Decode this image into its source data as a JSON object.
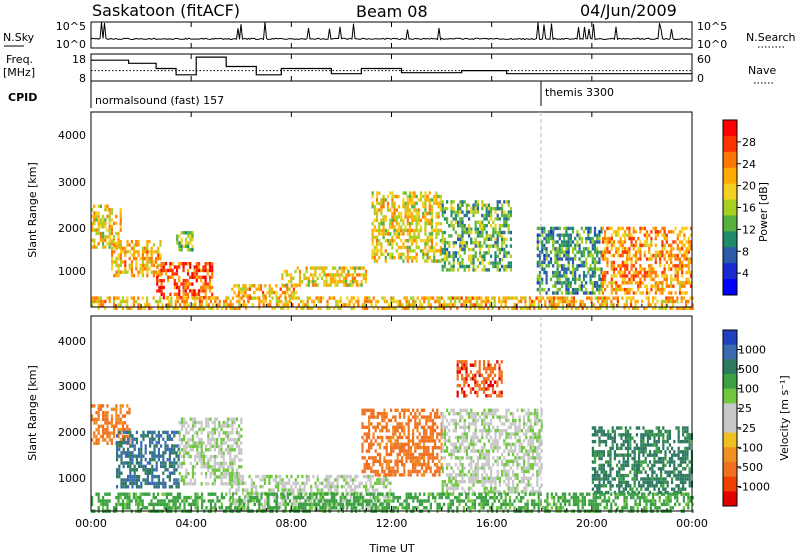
{
  "header": {
    "left": "Saskatoon (fitACF)",
    "center": "Beam 08",
    "right": "04/Jun/2009"
  },
  "noise_panel": {
    "left_label": "N.Sky",
    "right_label": "N.Search",
    "y_ticks": [
      "10^5",
      "10^0"
    ],
    "right_ticks": [
      "10^5",
      "10^0"
    ]
  },
  "freq_panel": {
    "left_label_1": "Freq.",
    "left_label_2": "[MHz]",
    "right_label": "Nave",
    "y_ticks": [
      "18",
      "8"
    ],
    "right_ticks": [
      "60",
      "0"
    ]
  },
  "cpid_panel": {
    "label": "CPID",
    "modes": [
      {
        "name": "normalsound (fast) 157",
        "start_hour": 0
      },
      {
        "name": "themis 3300",
        "start_hour": 18
      }
    ]
  },
  "power_panel": {
    "ylabel": "Slant Range [km]",
    "y_ticks": [
      "4000",
      "3000",
      "2000",
      "1000"
    ],
    "colorbar_label": "Power [dB]",
    "colorbar_ticks": [
      "28",
      "24",
      "20",
      "16",
      "12",
      "8",
      "4"
    ],
    "colorbar_colors": [
      "#ff0000",
      "#ff3300",
      "#ff7700",
      "#ffaa00",
      "#f5d020",
      "#a8d020",
      "#55b040",
      "#208a6a",
      "#2a5aa8",
      "#1a2ad0",
      "#0000ff"
    ]
  },
  "velocity_panel": {
    "ylabel": "Slant Range [km]",
    "y_ticks": [
      "4000",
      "3000",
      "2000",
      "1000"
    ],
    "colorbar_label": "Velocity [m s⁻¹]",
    "colorbar_ticks": [
      "1000",
      "500",
      "100",
      "25",
      "-25",
      "-100",
      "-500",
      "-1000"
    ],
    "colorbar_colors": [
      "#2040c0",
      "#3a6ab0",
      "#2e7a60",
      "#3aa040",
      "#70c840",
      "#c8c8c8",
      "#c8c8c8",
      "#f0c020",
      "#f09020",
      "#f07020",
      "#f04000",
      "#e00000"
    ]
  },
  "x_axis": {
    "label": "Time UT",
    "ticks": [
      "00:00",
      "04:00",
      "08:00",
      "12:00",
      "16:00",
      "20:00",
      "00:00"
    ]
  },
  "chart_data": {
    "type": "heatmap",
    "x_range_hours": [
      0,
      24
    ],
    "y_range_km": [
      180,
      4600
    ],
    "power_regions": [
      {
        "t0": 0.0,
        "t1": 1.2,
        "r0": 1500,
        "r1": 2500,
        "power_db": 18
      },
      {
        "t0": 0.8,
        "t1": 2.8,
        "r0": 900,
        "r1": 1700,
        "power_db": 20
      },
      {
        "t0": 2.6,
        "t1": 4.8,
        "r0": 400,
        "r1": 1200,
        "power_db": 26
      },
      {
        "t0": 3.4,
        "t1": 4.1,
        "r0": 1500,
        "r1": 1900,
        "power_db": 14
      },
      {
        "t0": 5.6,
        "t1": 8.2,
        "r0": 400,
        "r1": 700,
        "power_db": 20
      },
      {
        "t0": 7.6,
        "t1": 11.0,
        "r0": 700,
        "r1": 1100,
        "power_db": 18
      },
      {
        "t0": 11.2,
        "t1": 14.0,
        "r0": 1200,
        "r1": 2800,
        "power_db": 18
      },
      {
        "t0": 14.0,
        "t1": 16.8,
        "r0": 1000,
        "r1": 2600,
        "power_db": 12
      },
      {
        "t0": 17.8,
        "t1": 20.4,
        "r0": 500,
        "r1": 2000,
        "power_db": 10
      },
      {
        "t0": 20.4,
        "t1": 24.0,
        "r0": 500,
        "r1": 2000,
        "power_db": 22
      },
      {
        "t0": 0.0,
        "t1": 24.0,
        "r0": 180,
        "r1": 420,
        "power_db": 20
      }
    ],
    "velocity_regions": [
      {
        "t0": 0.0,
        "t1": 1.5,
        "r0": 1700,
        "r1": 2600,
        "velocity": -300
      },
      {
        "t0": 1.0,
        "t1": 3.5,
        "r0": 700,
        "r1": 2000,
        "velocity": 300
      },
      {
        "t0": 3.5,
        "t1": 6.0,
        "r0": 800,
        "r1": 2300,
        "velocity": 15
      },
      {
        "t0": 5.5,
        "t1": 12.0,
        "r0": 200,
        "r1": 1000,
        "velocity": 15
      },
      {
        "t0": 10.8,
        "t1": 14.0,
        "r0": 1000,
        "r1": 2500,
        "velocity": -400
      },
      {
        "t0": 14.6,
        "t1": 16.4,
        "r0": 2800,
        "r1": 3600,
        "velocity": -500
      },
      {
        "t0": 14.0,
        "t1": 18.0,
        "r0": 600,
        "r1": 2500,
        "velocity": 15
      },
      {
        "t0": 20.0,
        "t1": 24.0,
        "r0": 600,
        "r1": 2100,
        "velocity": 200
      },
      {
        "t0": 0.0,
        "t1": 24.0,
        "r0": 180,
        "r1": 600,
        "velocity": 80
      }
    ],
    "noise_sky_baseline": 0.35,
    "freq_steps_mhz": [
      {
        "t0": 0.0,
        "t1": 1.5,
        "f": 17.0
      },
      {
        "t0": 1.5,
        "t1": 2.6,
        "f": 15.5
      },
      {
        "t0": 2.6,
        "t1": 3.4,
        "f": 13.0
      },
      {
        "t0": 3.4,
        "t1": 4.2,
        "f": 10.0
      },
      {
        "t0": 4.2,
        "t1": 5.4,
        "f": 18.5
      },
      {
        "t0": 5.4,
        "t1": 6.6,
        "f": 14.0
      },
      {
        "t0": 6.6,
        "t1": 7.6,
        "f": 10.0
      },
      {
        "t0": 7.6,
        "t1": 9.6,
        "f": 13.0
      },
      {
        "t0": 9.6,
        "t1": 10.8,
        "f": 10.5
      },
      {
        "t0": 10.8,
        "t1": 12.4,
        "f": 13.0
      },
      {
        "t0": 12.4,
        "t1": 14.8,
        "f": 11.0
      },
      {
        "t0": 14.8,
        "t1": 16.6,
        "f": 12.0
      },
      {
        "t0": 16.6,
        "t1": 24.0,
        "f": 10.5
      }
    ],
    "nave_dotted_level_mhz": 12.0
  }
}
